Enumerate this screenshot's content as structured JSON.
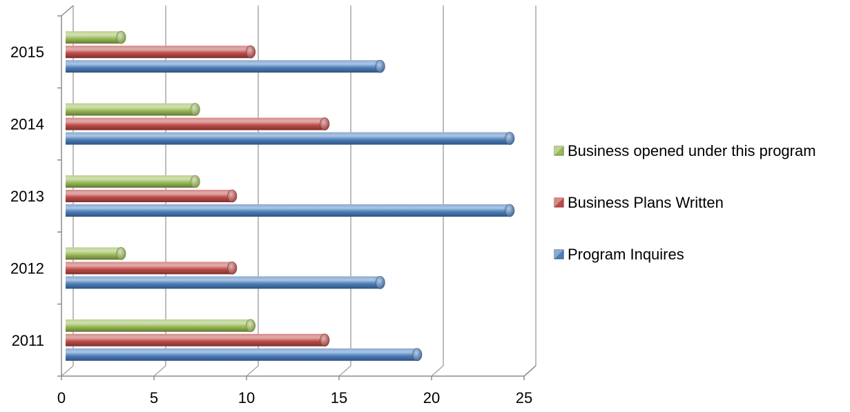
{
  "chart_data": {
    "type": "bar",
    "orientation": "horizontal",
    "style": "3d-cylinder",
    "categories": [
      "2011",
      "2012",
      "2013",
      "2014",
      "2015"
    ],
    "series": [
      {
        "name": "Program Inquires",
        "values": [
          19,
          17,
          24,
          24,
          17
        ],
        "color": "#4a7ebb"
      },
      {
        "name": "Business Plans Written",
        "values": [
          14,
          9,
          9,
          14,
          10
        ],
        "color": "#be4b48"
      },
      {
        "name": "Business opened under this program",
        "values": [
          10,
          3,
          7,
          7,
          3
        ],
        "color": "#98b954"
      }
    ],
    "xticks": [
      "0",
      "5",
      "10",
      "15",
      "20",
      "25"
    ],
    "xlim": [
      0,
      25
    ],
    "grid": true,
    "legend_position": "right",
    "legend_order": [
      "Business opened under this program",
      "Business Plans Written",
      "Program Inquires"
    ]
  }
}
